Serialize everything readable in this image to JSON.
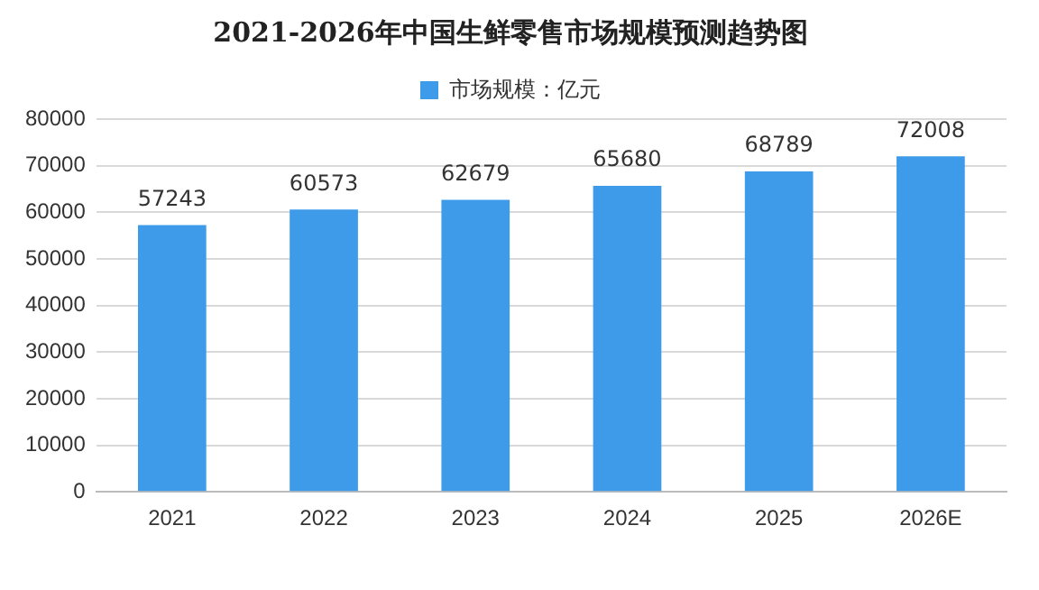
{
  "chart_data": {
    "type": "bar",
    "title": "2021-2026年中国生鲜零售市场规模预测趋势图",
    "categories": [
      "2021",
      "2022",
      "2023",
      "2024",
      "2025",
      "2026E"
    ],
    "series": [
      {
        "name": "市场规模：亿元",
        "color": "#3d9be9",
        "values": [
          57243,
          60573,
          62679,
          65680,
          68789,
          72008
        ]
      }
    ],
    "ylim": [
      0,
      80000
    ],
    "yticks": [
      0,
      10000,
      20000,
      30000,
      40000,
      50000,
      60000,
      70000,
      80000
    ],
    "grid": "y",
    "legend": "top",
    "data_labels": true
  }
}
